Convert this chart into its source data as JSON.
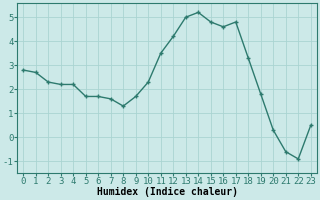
{
  "x": [
    0,
    1,
    2,
    3,
    4,
    5,
    6,
    7,
    8,
    9,
    10,
    11,
    12,
    13,
    14,
    15,
    16,
    17,
    18,
    19,
    20,
    21,
    22,
    23
  ],
  "y": [
    2.8,
    2.7,
    2.3,
    2.2,
    2.2,
    1.7,
    1.7,
    1.6,
    1.3,
    1.7,
    2.3,
    3.5,
    4.2,
    5.0,
    5.2,
    4.8,
    4.6,
    4.8,
    3.3,
    1.8,
    0.3,
    -0.6,
    -0.9,
    0.5
  ],
  "line_color": "#2d7a6e",
  "marker": "+",
  "marker_size": 3.5,
  "bg_color": "#cce9e8",
  "grid_major_color": "#aad4d2",
  "grid_minor_color": "#bfe0de",
  "axis_bg": "#cce9e8",
  "xlabel": "Humidex (Indice chaleur)",
  "xlim": [
    -0.5,
    23.5
  ],
  "ylim": [
    -1.5,
    5.6
  ],
  "yticks": [
    -1,
    0,
    1,
    2,
    3,
    4,
    5
  ],
  "xticks": [
    0,
    1,
    2,
    3,
    4,
    5,
    6,
    7,
    8,
    9,
    10,
    11,
    12,
    13,
    14,
    15,
    16,
    17,
    18,
    19,
    20,
    21,
    22,
    23
  ],
  "xlabel_fontsize": 7,
  "tick_fontsize": 6.5,
  "linewidth": 1.0,
  "marker_linewidth": 1.0
}
